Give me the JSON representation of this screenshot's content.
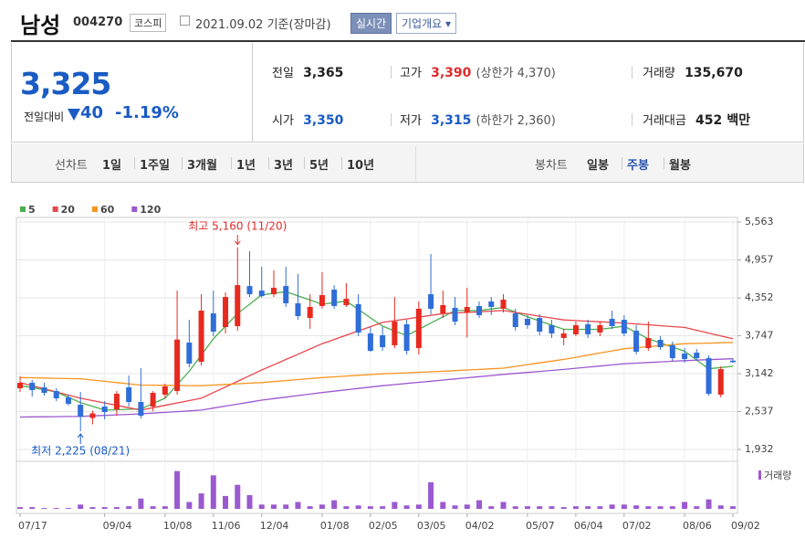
{
  "header": {
    "name": "남성",
    "code": "004270",
    "market": "코스피",
    "date": "2021.09.02",
    "basis": "기준(장마감)",
    "realtime": "실시간",
    "company": "기업개요"
  },
  "quote": {
    "price": "3,325",
    "change_label": "전일대비",
    "change": "40",
    "change_pct": "-1.19%",
    "items": [
      {
        "label": "전일",
        "value": "3,365"
      },
      {
        "label": "고가",
        "value": "3,390",
        "note": "(상한가 4,370)"
      },
      {
        "label": "거래량",
        "value": "135,670"
      },
      {
        "label": "시가",
        "value": "3,350"
      },
      {
        "label": "저가",
        "value": "3,315",
        "note": "(하한가 2,360)"
      },
      {
        "label": "거래대금",
        "value": "452",
        "unit": "백만"
      }
    ]
  },
  "tabs": {
    "line_label": "선차트",
    "line_periods": [
      "1일",
      "1주일",
      "3개월",
      "1년",
      "3년",
      "5년",
      "10년"
    ],
    "candle_label": "봉차트",
    "candle_periods": [
      "일봉",
      "주봉",
      "월봉"
    ],
    "selected_candle": 1
  },
  "chart_data": {
    "type": "candlestick",
    "categories": [
      "07/17",
      null,
      null,
      null,
      null,
      null,
      null,
      "09/04",
      null,
      null,
      null,
      null,
      "10/08",
      null,
      null,
      null,
      "11/06",
      null,
      null,
      null,
      "12/04",
      null,
      null,
      null,
      null,
      "01/08",
      null,
      null,
      null,
      "02/05",
      null,
      null,
      null,
      "03/05",
      null,
      null,
      null,
      "04/02",
      null,
      null,
      null,
      null,
      "05/07",
      null,
      null,
      null,
      "06/04",
      null,
      null,
      null,
      "07/02",
      null,
      null,
      null,
      null,
      "08/06",
      null,
      null,
      null,
      "09/02"
    ],
    "open": [
      2909,
      2996,
      2924,
      2865,
      2763,
      2646,
      2435,
      2617,
      2573,
      2924,
      2690,
      2617,
      2807,
      2865,
      3638,
      3332,
      4104,
      3886,
      3901,
      4541,
      4468,
      4410,
      4541,
      4265,
      4032,
      4222,
      4483,
      4236,
      4251,
      3784,
      3755,
      3595,
      3930,
      3550,
      4410,
      4105,
      4193,
      4120,
      4222,
      4295,
      4178,
      4105,
      4017,
      4032,
      3916,
      3711,
      3770,
      3930,
      3799,
      4017,
      4003,
      3828,
      3550,
      3682,
      3595,
      3463,
      3478,
      3390,
      2807,
      3350
    ],
    "high": [
      3098,
      3040,
      2996,
      2909,
      2807,
      2850,
      2552,
      2704,
      2865,
      3113,
      3229,
      2865,
      2982,
      4468,
      4002,
      4410,
      4468,
      4439,
      5160,
      5096,
      4848,
      4790,
      4848,
      4732,
      4410,
      4761,
      4556,
      4585,
      4410,
      3886,
      3886,
      4366,
      4003,
      4295,
      5052,
      4468,
      4366,
      4512,
      4295,
      4366,
      4410,
      4178,
      4076,
      4090,
      4003,
      3857,
      3974,
      4003,
      3974,
      4148,
      4076,
      3916,
      3974,
      3740,
      3653,
      3550,
      3536,
      3434,
      3259,
      3390
    ],
    "low": [
      2850,
      2777,
      2792,
      2704,
      2632,
      2225,
      2333,
      2412,
      2471,
      2617,
      2427,
      2544,
      2748,
      2807,
      3244,
      3273,
      3740,
      3784,
      3828,
      4366,
      4352,
      4366,
      4207,
      4003,
      3857,
      4178,
      4178,
      4207,
      3740,
      3492,
      3507,
      3550,
      3449,
      3449,
      4090,
      4032,
      3916,
      3718,
      4032,
      4076,
      4120,
      3828,
      3857,
      3755,
      3711,
      3595,
      3740,
      3711,
      3740,
      3857,
      3740,
      3449,
      3507,
      3521,
      3346,
      3317,
      3346,
      2792,
      2763,
      3315
    ],
    "close": [
      2996,
      2880,
      2836,
      2748,
      2661,
      2456,
      2508,
      2529,
      2821,
      2690,
      2471,
      2836,
      2938,
      3686,
      3302,
      4148,
      3813,
      4366,
      4556,
      4410,
      4381,
      4512,
      4265,
      4061,
      4207,
      4396,
      4222,
      4337,
      3799,
      3507,
      3565,
      3974,
      3507,
      4178,
      4178,
      4236,
      3974,
      4207,
      4076,
      4207,
      4324,
      3886,
      3916,
      3813,
      3784,
      3784,
      3916,
      3770,
      3916,
      3901,
      3784,
      3492,
      3711,
      3565,
      3390,
      3375,
      3390,
      2821,
      3215,
      3325
    ],
    "up_color": "#e8291f",
    "down_color": "#2f6ed8",
    "ylim": [
      1932,
      5563
    ],
    "yticks": [
      {
        "value": 1932,
        "label": "1,932"
      },
      {
        "value": 2537,
        "label": "2,537"
      },
      {
        "value": 3142,
        "label": "3,142"
      },
      {
        "value": 3747,
        "label": "3,747"
      },
      {
        "value": 4352,
        "label": "4,352"
      },
      {
        "value": 4957,
        "label": "4,957"
      },
      {
        "value": 5563,
        "label": "5,563"
      }
    ],
    "grid": true,
    "series": [
      {
        "name": "5",
        "color": "#4caf50",
        "values": [
          2950,
          2920,
          2885,
          2850,
          2765,
          2680,
          2620,
          2560,
          2567,
          2573,
          2580,
          2665,
          2750,
          2965,
          3180,
          3440,
          3700,
          3900,
          4100,
          4250,
          4400,
          4425,
          4450,
          4383,
          4317,
          4250,
          4275,
          4300,
          4167,
          4033,
          3900,
          3825,
          3750,
          3850,
          3950,
          4050,
          4150,
          4150,
          4150,
          4175,
          4200,
          4125,
          4050,
          3983,
          3917,
          3850,
          3850,
          3850,
          3850,
          3875,
          3900,
          3800,
          3700,
          3633,
          3567,
          3500,
          3360,
          3220,
          3240,
          3260
        ]
      },
      {
        "name": "20",
        "color": "#e8474c",
        "values": [
          3000,
          2950,
          2900,
          2850,
          2800,
          2750,
          2712,
          2674,
          2636,
          2598,
          2560,
          2598,
          2636,
          2674,
          2712,
          2750,
          2840,
          2930,
          3020,
          3110,
          3200,
          3284,
          3368,
          3452,
          3536,
          3620,
          3688,
          3756,
          3824,
          3892,
          3960,
          3988,
          4016,
          4044,
          4072,
          4100,
          4110,
          4120,
          4130,
          4140,
          4150,
          4120,
          4090,
          4060,
          4030,
          4000,
          3990,
          3980,
          3970,
          3960,
          3950,
          3936,
          3922,
          3908,
          3894,
          3880,
          3835,
          3790,
          3745,
          3700
        ]
      },
      {
        "name": "60",
        "color": "#f7941d",
        "values": [
          3080,
          3076,
          3072,
          3068,
          3064,
          3060,
          3040,
          3020,
          3000,
          2980,
          2960,
          2958,
          2956,
          2954,
          2952,
          2950,
          2960,
          2970,
          2980,
          2990,
          3000,
          3016,
          3032,
          3048,
          3064,
          3080,
          3092,
          3104,
          3116,
          3128,
          3140,
          3148,
          3156,
          3164,
          3172,
          3180,
          3190,
          3200,
          3210,
          3220,
          3230,
          3258,
          3286,
          3314,
          3342,
          3370,
          3404,
          3438,
          3472,
          3506,
          3540,
          3556,
          3572,
          3588,
          3604,
          3620,
          3625,
          3630,
          3635,
          3640
        ]
      },
      {
        "name": "120",
        "color": "#9b59d0",
        "values": [
          2450,
          2452,
          2454,
          2456,
          2458,
          2460,
          2468,
          2476,
          2484,
          2492,
          2500,
          2512,
          2524,
          2536,
          2548,
          2560,
          2592,
          2624,
          2656,
          2688,
          2720,
          2744,
          2768,
          2792,
          2816,
          2840,
          2862,
          2884,
          2906,
          2928,
          2950,
          2968,
          2986,
          3004,
          3022,
          3040,
          3058,
          3076,
          3094,
          3112,
          3130,
          3146,
          3162,
          3178,
          3194,
          3210,
          3228,
          3246,
          3264,
          3282,
          3300,
          3310,
          3320,
          3330,
          3340,
          3350,
          3358,
          3365,
          3373,
          3380
        ]
      }
    ],
    "annotations": {
      "high": "최고 5,160 (11/20)",
      "low": "최저 2,225 (08/21)"
    },
    "volume": {
      "name": "거래량",
      "color": "#9b59d0",
      "ylim": [
        0,
        50
      ],
      "values": [
        2,
        2,
        1,
        1,
        1,
        5,
        2,
        2,
        2,
        3,
        12,
        3,
        3,
        44,
        8,
        18,
        39,
        15,
        28,
        16,
        5,
        5,
        5,
        8,
        3,
        5,
        10,
        3,
        4,
        3,
        3,
        8,
        4,
        5,
        31,
        8,
        4,
        5,
        10,
        3,
        8,
        3,
        3,
        3,
        3,
        2,
        3,
        3,
        3,
        5,
        5,
        4,
        3,
        3,
        3,
        8,
        3,
        11,
        4,
        3
      ]
    }
  }
}
